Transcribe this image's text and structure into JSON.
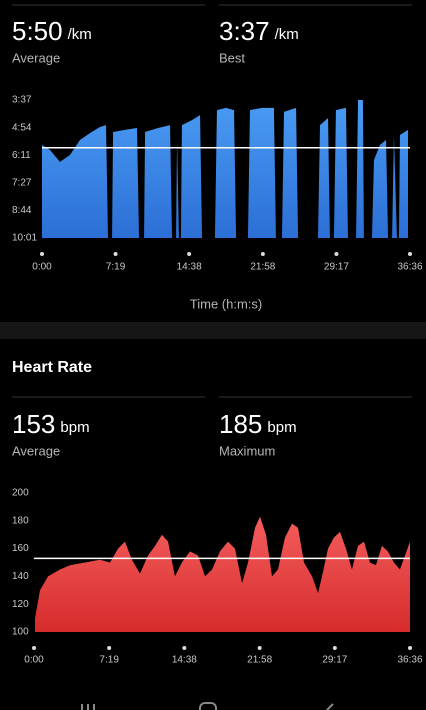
{
  "chart_data": [
    {
      "type": "area",
      "stats": [
        {
          "value": {
            "value": 350,
            "label": "5:50"
          },
          "unit": "/km",
          "label": "Average"
        },
        {
          "value": {
            "value": 217,
            "label": "3:37"
          },
          "unit": "/km",
          "label": "Best"
        }
      ],
      "x_label": "Time (h:m:s)",
      "xlim": [
        0,
        2196
      ],
      "xticks": [
        {
          "value": 0,
          "label": "0:00"
        },
        {
          "value": 439,
          "label": "7:19"
        },
        {
          "value": 878,
          "label": "14:38"
        },
        {
          "value": 1318,
          "label": "21:58"
        },
        {
          "value": 1757,
          "label": "29:17"
        },
        {
          "value": 2196,
          "label": "36:36"
        }
      ],
      "ylim": [
        601,
        217
      ],
      "yticks": [
        {
          "value": 217,
          "label": "3:37"
        },
        {
          "value": 294,
          "label": "4:54"
        },
        {
          "value": 371,
          "label": "6:11"
        },
        {
          "value": 447,
          "label": "7:27"
        },
        {
          "value": 524,
          "label": "8:44"
        },
        {
          "value": 601,
          "label": "10:01"
        }
      ],
      "series": [
        {
          "color": "#3d8eea",
          "x": [
            0,
            48,
            107,
            167,
            227,
            286,
            346,
            382,
            394,
            418,
            424,
            495,
            567,
            579,
            609,
            615,
            692,
            764,
            776,
            800,
            806,
            817,
            829,
            835,
            895,
            943,
            955,
            1032,
            1044,
            1098,
            1146,
            1158,
            1229,
            1241,
            1313,
            1384,
            1396,
            1432,
            1444,
            1516,
            1528,
            1647,
            1659,
            1707,
            1718,
            1742,
            1754,
            1814,
            1826,
            1874,
            1886,
            1915,
            1921,
            1969,
            1981,
            2017,
            2053,
            2065,
            2089,
            2100,
            2118,
            2130,
            2136,
            2184
          ],
          "values": [
            342,
            356,
            389,
            370,
            328,
            309,
            292,
            287,
            601,
            601,
            306,
            300,
            295,
            601,
            601,
            306,
            295,
            287,
            601,
            601,
            328,
            601,
            601,
            287,
            273,
            259,
            601,
            601,
            245,
            239,
            245,
            601,
            601,
            245,
            239,
            239,
            601,
            601,
            250,
            239,
            601,
            601,
            287,
            267,
            601,
            601,
            245,
            239,
            601,
            601,
            217,
            217,
            601,
            601,
            384,
            342,
            328,
            601,
            601,
            314,
            601,
            601,
            314,
            300
          ]
        }
      ]
    },
    {
      "type": "area",
      "title": "Heart Rate",
      "stats": [
        {
          "value": 153,
          "unit": "bpm",
          "label": "Average"
        },
        {
          "value": 185,
          "unit": "bpm",
          "label": "Maximum"
        }
      ],
      "xlim": [
        0,
        2196
      ],
      "xticks": [
        {
          "value": 0,
          "label": "0:00"
        },
        {
          "value": 439,
          "label": "7:19"
        },
        {
          "value": 878,
          "label": "14:38"
        },
        {
          "value": 1318,
          "label": "21:58"
        },
        {
          "value": 1757,
          "label": "29:17"
        },
        {
          "value": 2196,
          "label": "36:36"
        }
      ],
      "ylim": [
        100,
        200
      ],
      "yticks": [
        100,
        120,
        140,
        160,
        180,
        200
      ],
      "series": [
        {
          "color": "#ef4f4f",
          "x": [
            6,
            35,
            82,
            152,
            210,
            298,
            385,
            444,
            491,
            531,
            572,
            619,
            666,
            707,
            747,
            783,
            823,
            864,
            911,
            958,
            999,
            1040,
            1086,
            1133,
            1174,
            1215,
            1250,
            1291,
            1320,
            1355,
            1390,
            1425,
            1466,
            1507,
            1542,
            1577,
            1624,
            1659,
            1682,
            1717,
            1752,
            1787,
            1822,
            1857,
            1892,
            1927,
            1962,
            1997,
            2032,
            2067,
            2102,
            2137,
            2167,
            2196
          ],
          "values": [
            110,
            130,
            140,
            145,
            148,
            150,
            152,
            150,
            160,
            165,
            152,
            142,
            155,
            162,
            170,
            165,
            140,
            150,
            158,
            155,
            140,
            145,
            158,
            165,
            160,
            135,
            150,
            175,
            183,
            170,
            140,
            145,
            168,
            178,
            175,
            150,
            140,
            128,
            140,
            160,
            168,
            172,
            160,
            145,
            162,
            165,
            150,
            148,
            162,
            158,
            150,
            145,
            155,
            165
          ]
        }
      ]
    }
  ]
}
